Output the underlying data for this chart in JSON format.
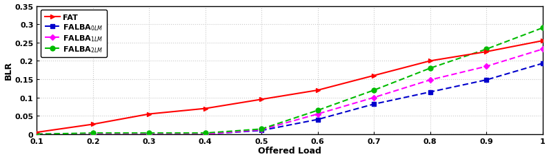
{
  "x": [
    0.1,
    0.2,
    0.3,
    0.4,
    0.5,
    0.6,
    0.7,
    0.8,
    0.9,
    1.0
  ],
  "FAT": [
    0.005,
    0.027,
    0.055,
    0.07,
    0.095,
    0.12,
    0.16,
    0.2,
    0.225,
    0.255
  ],
  "FALBA_0LM": [
    0.0,
    0.0,
    0.0,
    0.0,
    0.01,
    0.04,
    0.082,
    0.115,
    0.148,
    0.193
  ],
  "FALBA_1LM": [
    0.0,
    0.0,
    0.0,
    0.0,
    0.012,
    0.055,
    0.1,
    0.148,
    0.185,
    0.232
  ],
  "FALBA_2LM": [
    0.0,
    0.003,
    0.003,
    0.003,
    0.014,
    0.065,
    0.12,
    0.18,
    0.232,
    0.29
  ],
  "FAT_color": "#ff0000",
  "FALBA_0LM_color": "#0000cc",
  "FALBA_1LM_color": "#ff00ff",
  "FALBA_2LM_color": "#00bb00",
  "xlabel": "Offered Load",
  "ylabel": "BLR",
  "xlim": [
    0.1,
    1.0
  ],
  "ylim": [
    0.0,
    0.35
  ],
  "yticks": [
    0.0,
    0.05,
    0.1,
    0.15,
    0.2,
    0.25,
    0.3,
    0.35
  ],
  "xticks": [
    0.1,
    0.2,
    0.3,
    0.4,
    0.5,
    0.6,
    0.7,
    0.8,
    0.9,
    1.0
  ],
  "legend_FAT": "FAT",
  "legend_0LM": "FALBA$_{0LM}$",
  "legend_1LM": "FALBA$_{1LM}$",
  "legend_2LM": "FALBA$_{2LM}$",
  "background_color": "#ffffff",
  "grid_color": "#c8c8c8"
}
